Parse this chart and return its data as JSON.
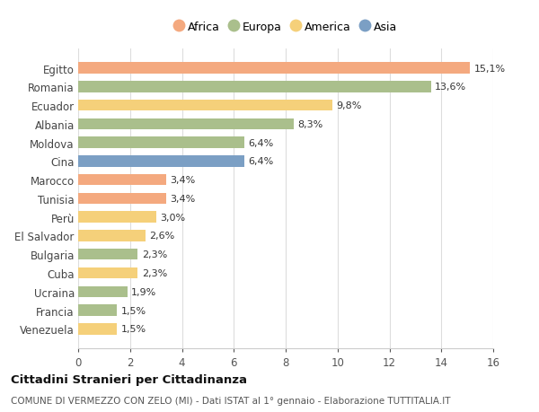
{
  "countries": [
    "Egitto",
    "Romania",
    "Ecuador",
    "Albania",
    "Moldova",
    "Cina",
    "Marocco",
    "Tunisia",
    "Perù",
    "El Salvador",
    "Bulgaria",
    "Cuba",
    "Ucraina",
    "Francia",
    "Venezuela"
  ],
  "values": [
    15.1,
    13.6,
    9.8,
    8.3,
    6.4,
    6.4,
    3.4,
    3.4,
    3.0,
    2.6,
    2.3,
    2.3,
    1.9,
    1.5,
    1.5
  ],
  "labels": [
    "15,1%",
    "13,6%",
    "9,8%",
    "8,3%",
    "6,4%",
    "6,4%",
    "3,4%",
    "3,4%",
    "3,0%",
    "2,6%",
    "2,3%",
    "2,3%",
    "1,9%",
    "1,5%",
    "1,5%"
  ],
  "continents": [
    "Africa",
    "Europa",
    "America",
    "Europa",
    "Europa",
    "Asia",
    "Africa",
    "Africa",
    "America",
    "America",
    "Europa",
    "America",
    "Europa",
    "Europa",
    "America"
  ],
  "colors": {
    "Africa": "#F4A97F",
    "Europa": "#AABF8C",
    "America": "#F5D07A",
    "Asia": "#7B9FC4"
  },
  "legend_order": [
    "Africa",
    "Europa",
    "America",
    "Asia"
  ],
  "xlim": [
    0,
    16
  ],
  "xticks": [
    0,
    2,
    4,
    6,
    8,
    10,
    12,
    14,
    16
  ],
  "title": "Cittadini Stranieri per Cittadinanza",
  "subtitle": "COMUNE DI VERMEZZO CON ZELO (MI) - Dati ISTAT al 1° gennaio - Elaborazione TUTTITALIA.IT",
  "bg_color": "#ffffff",
  "grid_color": "#dddddd",
  "bar_height": 0.6,
  "label_fontsize": 8,
  "ytick_fontsize": 8.5,
  "xtick_fontsize": 8.5,
  "title_fontsize": 9.5,
  "subtitle_fontsize": 7.5,
  "legend_fontsize": 9
}
